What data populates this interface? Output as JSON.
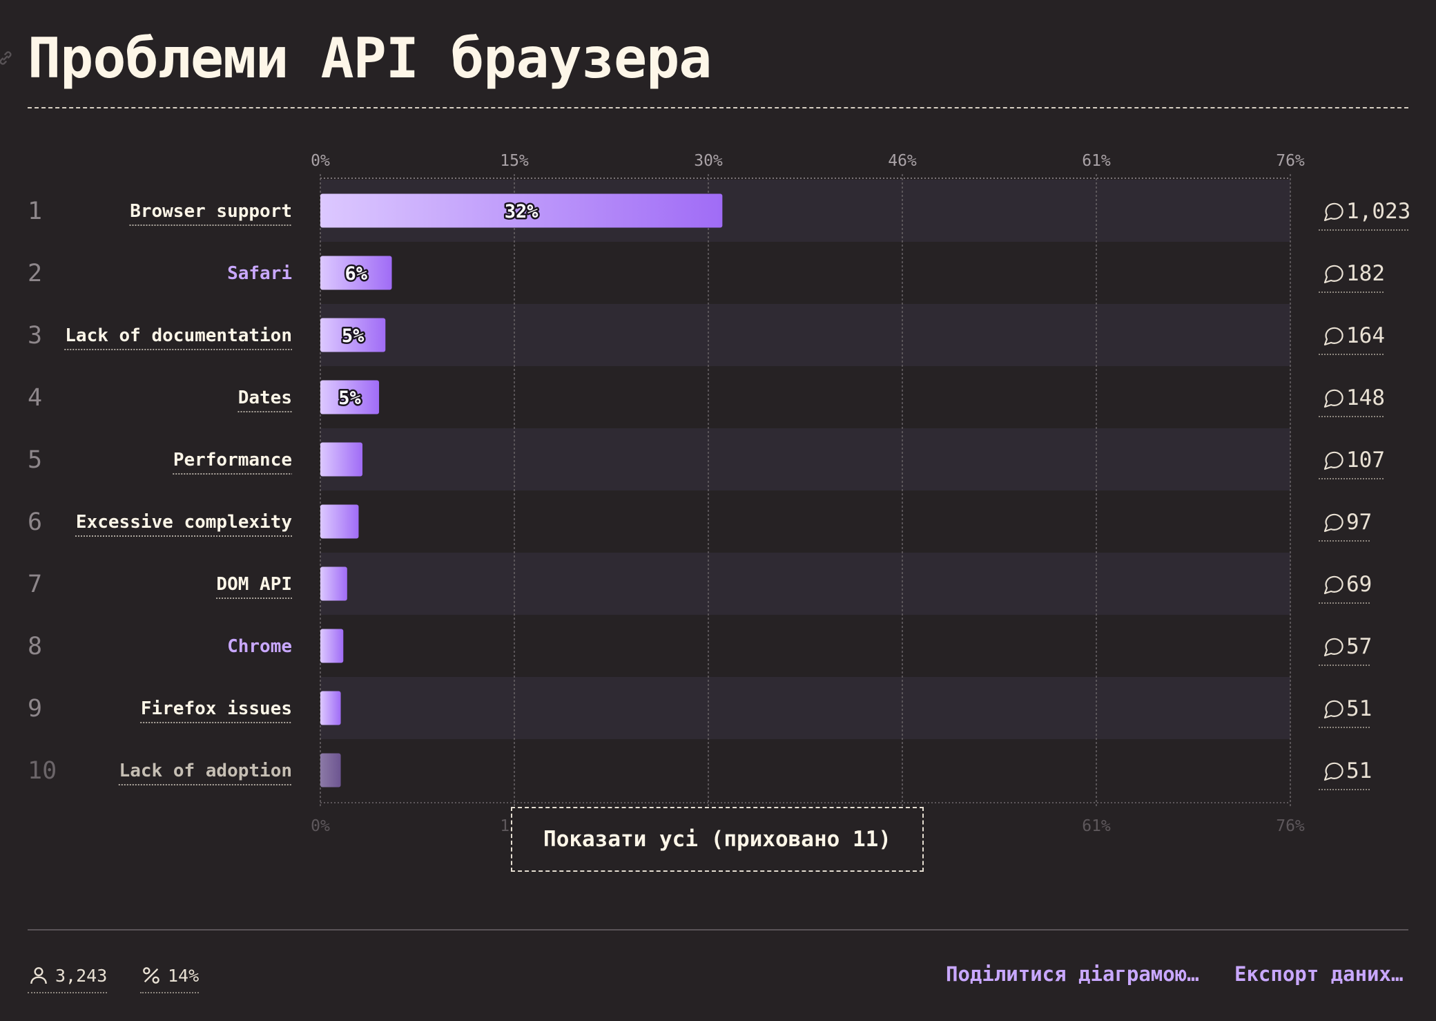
{
  "title": "Проблеми API браузера",
  "chart_data": {
    "type": "bar",
    "orientation": "horizontal",
    "x_ticks": [
      "0%",
      "15%",
      "30%",
      "46%",
      "61%",
      "76%"
    ],
    "xlim": [
      0,
      76
    ],
    "categories": [
      "Browser support",
      "Safari",
      "Lack of documentation",
      "Dates",
      "Performance",
      "Excessive complexity",
      "DOM API",
      "Chrome",
      "Firefox issues",
      "Lack of adoption"
    ],
    "ranks": [
      "1",
      "2",
      "3",
      "4",
      "5",
      "6",
      "7",
      "8",
      "9",
      "10"
    ],
    "values": [
      31.5,
      5.6,
      5.1,
      4.6,
      3.3,
      3.0,
      2.1,
      1.8,
      1.6,
      1.6
    ],
    "value_labels": [
      "32%",
      "6%",
      "5%",
      "5%",
      "",
      "",
      "",
      "",
      "",
      ""
    ],
    "counts": [
      "1,023",
      "182",
      "164",
      "148",
      "107",
      "97",
      "69",
      "57",
      "51",
      "51"
    ],
    "highlighted": [
      false,
      true,
      false,
      false,
      false,
      false,
      false,
      true,
      false,
      false
    ],
    "dimmed": [
      false,
      false,
      false,
      false,
      false,
      false,
      false,
      false,
      false,
      true
    ],
    "grid": true
  },
  "show_all_label": "Показати усі (приховано 11)",
  "footer": {
    "respondents": "3,243",
    "percent": "14%",
    "share_label": "Поділитися діаграмою…",
    "export_label": "Експорт даних…"
  },
  "colors": {
    "background": "#262224",
    "text": "#fdf6e8",
    "accent": "#c9a8ff",
    "bar_start": "#dcc8ff",
    "bar_end": "#a06cf6",
    "stripe": "#2f2a33"
  },
  "icons": {
    "link": "link-icon",
    "comment": "comment-icon",
    "user": "user-icon",
    "percent": "percent-icon"
  }
}
